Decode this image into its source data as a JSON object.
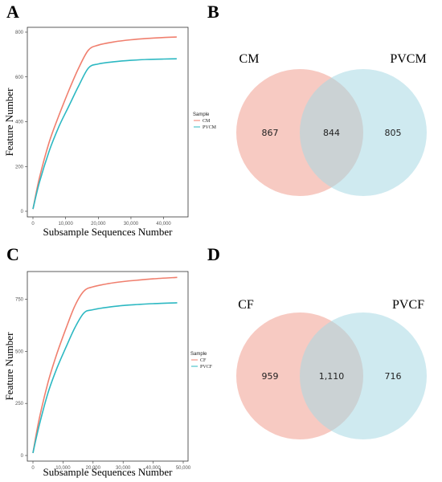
{
  "panels": {
    "A": "A",
    "B": "B",
    "C": "C",
    "D": "D"
  },
  "colors": {
    "series1": "#F07F6E",
    "series2": "#2CB8C2",
    "venn_left": "#F4B3A8",
    "venn_right": "#A8D8E4"
  },
  "chart_data": [
    {
      "type": "line",
      "panel": "A",
      "xlabel": "Subsample Sequences Number",
      "ylabel": "Feature Number",
      "xlim": [
        0,
        46000
      ],
      "ylim": [
        0,
        800
      ],
      "xticks": [
        0,
        10000,
        20000,
        30000,
        40000
      ],
      "xtick_labels": [
        "0",
        "10,000",
        "20,000",
        "30,000",
        "40,000"
      ],
      "yticks": [
        0,
        200,
        400,
        600,
        800
      ],
      "ytick_labels": [
        "0",
        "200",
        "400",
        "600",
        "800"
      ],
      "legend_title": "Sample",
      "grid": false,
      "series": [
        {
          "name": "CM",
          "x": [
            0,
            2000,
            5000,
            8000,
            11000,
            14000,
            17000,
            20000,
            25000,
            30000,
            35000,
            40000,
            44000
          ],
          "y": [
            10,
            150,
            310,
            430,
            540,
            640,
            720,
            742,
            757,
            766,
            772,
            776,
            778
          ]
        },
        {
          "name": "PVCM",
          "x": [
            0,
            2000,
            5000,
            8000,
            11000,
            14000,
            17000,
            20000,
            25000,
            30000,
            35000,
            40000,
            44000
          ],
          "y": [
            10,
            130,
            270,
            380,
            470,
            560,
            640,
            658,
            668,
            674,
            678,
            680,
            681
          ]
        }
      ]
    },
    {
      "type": "line",
      "panel": "C",
      "xlabel": "Subsample Sequences Number",
      "ylabel": "Feature Number",
      "xlim": [
        0,
        50000
      ],
      "ylim": [
        0,
        860
      ],
      "xticks": [
        0,
        10000,
        20000,
        30000,
        40000,
        50000
      ],
      "xtick_labels": [
        "0",
        "10,000",
        "20,000",
        "30,000",
        "40,000",
        "50,000"
      ],
      "yticks": [
        0,
        250,
        500,
        750
      ],
      "ytick_labels": [
        "0",
        "250",
        "500",
        "750"
      ],
      "legend_title": "Sample",
      "grid": false,
      "series": [
        {
          "name": "CF",
          "x": [
            0,
            2000,
            5000,
            8000,
            11000,
            14000,
            17000,
            20000,
            25000,
            30000,
            35000,
            40000,
            48000
          ],
          "y": [
            12,
            170,
            350,
            490,
            610,
            720,
            790,
            810,
            825,
            835,
            842,
            848,
            855
          ]
        },
        {
          "name": "PVCF",
          "x": [
            0,
            2000,
            5000,
            8000,
            11000,
            14000,
            17000,
            20000,
            25000,
            30000,
            35000,
            40000,
            48000
          ],
          "y": [
            12,
            140,
            300,
            420,
            520,
            615,
            685,
            700,
            712,
            720,
            725,
            729,
            733
          ]
        }
      ]
    }
  ],
  "venn_B": {
    "left_label": "CM",
    "right_label": "PVCM",
    "left_only": "867",
    "overlap": "844",
    "right_only": "805"
  },
  "venn_D": {
    "left_label": "CF",
    "right_label": "PVCF",
    "left_only": "959",
    "overlap": "1,110",
    "right_only": "716"
  }
}
